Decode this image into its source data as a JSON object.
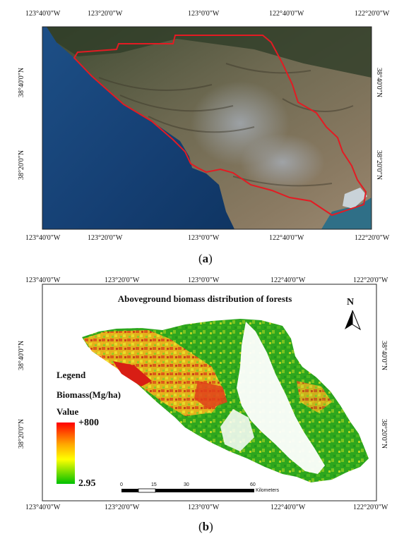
{
  "panel_a": {
    "caption_letter": "a",
    "top_lon_labels": [
      "123°40'0\"W",
      "123°20'0\"W",
      "123°0'0\"W",
      "122°40'0\"W",
      "122°20'0\"W"
    ],
    "bottom_lon_labels": [
      "123°40'0\"W",
      "123°20'0\"W",
      "123°0'0\"W",
      "122°40'0\"W",
      "122°20'0\"W"
    ],
    "lat_labels": [
      "38°40'0\"N",
      "38°20'0\"N"
    ],
    "boundary_color": "#e31b23"
  },
  "panel_b": {
    "caption_letter": "b",
    "title": "Aboveground biomass distribution of forests",
    "north_label": "N",
    "top_lon_labels": [
      "123°40'0\"W",
      "123°20'0\"W",
      "123°0'0\"W",
      "122°40'0\"W",
      "122°20'0\"W"
    ],
    "bottom_lon_labels": [
      "123°40'0\"W",
      "123°20'0\"W",
      "123°0'0\"W",
      "122°40'0\"W",
      "122°20'0\"W"
    ],
    "lat_labels": [
      "38°40'0\"N",
      "38°20'0\"N"
    ],
    "legend": {
      "heading": "Legend",
      "variable": "Biomass(Mg/ha)",
      "value_label": "Value",
      "max_label": "+800",
      "min_label": "2.95",
      "colors": [
        "#ff0000",
        "#ffa500",
        "#ffff00",
        "#00c000"
      ]
    },
    "scale_bar": {
      "ticks": [
        "0",
        "15",
        "30",
        "60"
      ],
      "unit": "Kilometers"
    }
  }
}
